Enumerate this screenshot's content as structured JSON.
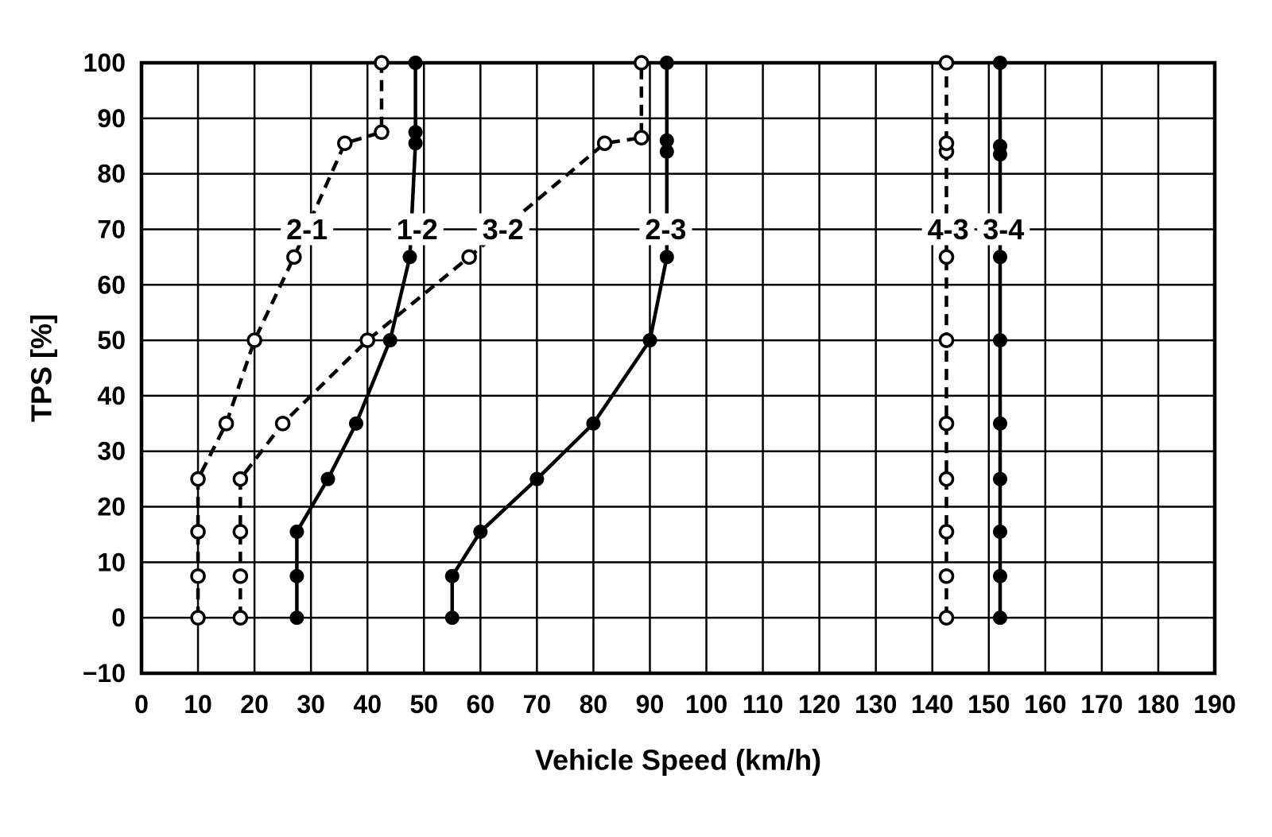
{
  "colors": {
    "foreground": "#000000",
    "background": "#ffffff"
  },
  "chart_data": {
    "type": "line",
    "title": "",
    "xlabel": "Vehicle Speed (km/h)",
    "ylabel": "TPS [%]",
    "xlim": [
      0,
      190
    ],
    "ylim": [
      -10,
      100
    ],
    "xticks": [
      0,
      10,
      20,
      30,
      40,
      50,
      60,
      70,
      80,
      90,
      100,
      110,
      120,
      130,
      140,
      150,
      160,
      170,
      180,
      190
    ],
    "yticks": [
      -10,
      0,
      10,
      20,
      30,
      40,
      50,
      60,
      70,
      80,
      90,
      100
    ],
    "grid": "on",
    "legend_position": "labels-on-lines",
    "series": [
      {
        "name": "2-1",
        "line": "dashed",
        "marker": "open-circle",
        "label": {
          "text": "2-1",
          "x": 29.3,
          "y": 70
        },
        "points": [
          [
            10,
            0
          ],
          [
            10,
            7.5
          ],
          [
            10,
            15.5
          ],
          [
            10,
            25
          ],
          [
            15,
            35
          ],
          [
            20,
            50
          ],
          [
            27,
            65
          ],
          [
            36,
            85.5
          ],
          [
            42.5,
            87.5
          ],
          [
            42.5,
            100
          ]
        ]
      },
      {
        "name": "1-2",
        "line": "solid",
        "marker": "filled-circle",
        "label": {
          "text": "1-2",
          "x": 48.8,
          "y": 70
        },
        "points": [
          [
            27.5,
            0
          ],
          [
            27.5,
            7.5
          ],
          [
            27.5,
            15.5
          ],
          [
            33,
            25
          ],
          [
            38,
            35
          ],
          [
            44,
            50
          ],
          [
            47.5,
            65
          ],
          [
            48.5,
            85.5
          ],
          [
            48.5,
            87.5
          ],
          [
            48.5,
            100
          ]
        ]
      },
      {
        "name": "3-2",
        "line": "dashed",
        "marker": "open-circle",
        "label": {
          "text": "3-2",
          "x": 64,
          "y": 70
        },
        "points": [
          [
            17.5,
            0
          ],
          [
            17.5,
            7.5
          ],
          [
            17.5,
            15.5
          ],
          [
            17.5,
            25
          ],
          [
            25,
            35
          ],
          [
            40,
            50
          ],
          [
            58,
            65
          ],
          [
            82,
            85.5
          ],
          [
            88.5,
            86.5
          ],
          [
            88.5,
            100
          ]
        ]
      },
      {
        "name": "2-3",
        "line": "solid",
        "marker": "filled-circle",
        "label": {
          "text": "2-3",
          "x": 92.8,
          "y": 70
        },
        "points": [
          [
            55,
            0
          ],
          [
            55,
            7.5
          ],
          [
            60,
            15.5
          ],
          [
            70,
            25
          ],
          [
            80,
            35
          ],
          [
            90,
            50
          ],
          [
            93,
            65
          ],
          [
            93,
            84
          ],
          [
            93,
            86
          ],
          [
            93,
            100
          ]
        ]
      },
      {
        "name": "4-3",
        "line": "dashed",
        "marker": "open-circle",
        "label": {
          "text": "4-3",
          "x": 142.8,
          "y": 70
        },
        "points": [
          [
            142.5,
            0
          ],
          [
            142.5,
            7.5
          ],
          [
            142.5,
            15.5
          ],
          [
            142.5,
            25
          ],
          [
            142.5,
            35
          ],
          [
            142.5,
            50
          ],
          [
            142.5,
            65
          ],
          [
            142.5,
            84
          ],
          [
            142.5,
            85.5
          ],
          [
            142.5,
            100
          ]
        ]
      },
      {
        "name": "3-4",
        "line": "solid",
        "marker": "filled-circle",
        "label": {
          "text": "3-4",
          "x": 152.6,
          "y": 70
        },
        "points": [
          [
            152,
            0
          ],
          [
            152,
            7.5
          ],
          [
            152,
            15.5
          ],
          [
            152,
            25
          ],
          [
            152,
            35
          ],
          [
            152,
            50
          ],
          [
            152,
            65
          ],
          [
            152,
            83.5
          ],
          [
            152,
            85
          ],
          [
            152,
            100
          ]
        ]
      }
    ]
  }
}
